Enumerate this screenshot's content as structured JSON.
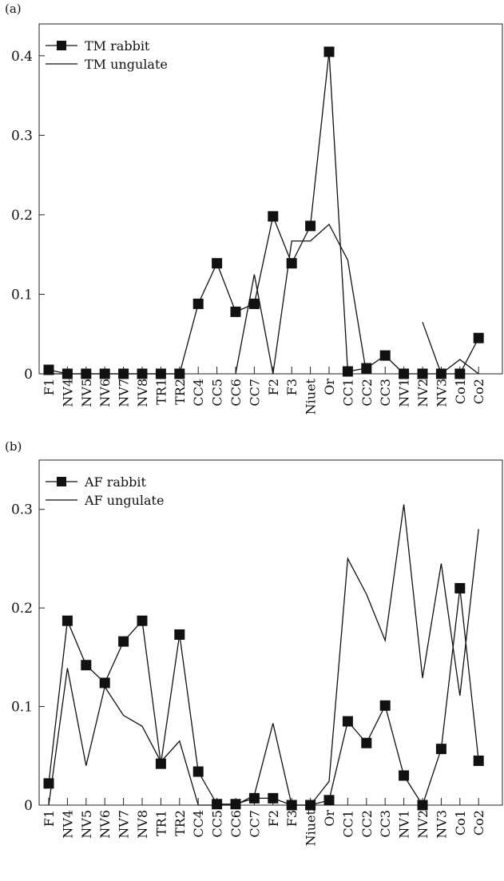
{
  "chart_data": [
    {
      "type": "line",
      "panel_label": "(a)",
      "categories": [
        "F1",
        "NV4",
        "NV5",
        "NV6",
        "NV7",
        "NV8",
        "TR1",
        "TR2",
        "CC4",
        "CC5",
        "CC6",
        "CC7",
        "F2",
        "F3",
        "Niuet",
        "Or",
        "CC1",
        "CC2",
        "CC3",
        "NV1",
        "NV2",
        "NV3",
        "Co1",
        "Co2"
      ],
      "series": [
        {
          "name": "TM rabbit",
          "marker": "square",
          "values": [
            0.005,
            0,
            0,
            0,
            0,
            0,
            0,
            0,
            0.088,
            0.139,
            0.078,
            0.088,
            0.198,
            0.139,
            0.186,
            0.405,
            0.003,
            0.007,
            0.023,
            0,
            0,
            0,
            0,
            0.045
          ]
        },
        {
          "name": "TM ungulate",
          "marker": "none",
          "values": [
            0,
            0,
            0,
            0,
            0,
            0,
            0,
            0,
            null,
            null,
            0,
            0.125,
            0,
            0.167,
            0.167,
            0.188,
            0.143,
            0,
            null,
            null,
            0.065,
            0,
            0.018,
            0
          ]
        }
      ],
      "yticks": [
        "0",
        "0.1",
        "0.2",
        "0.3",
        "0.4"
      ],
      "ylim": [
        0,
        0.44
      ],
      "legend_position": "top-left"
    },
    {
      "type": "line",
      "panel_label": "(b)",
      "categories": [
        "F1",
        "NV4",
        "NV5",
        "NV6",
        "NV7",
        "NV8",
        "TR1",
        "TR2",
        "CC4",
        "CC5",
        "CC6",
        "CC7",
        "F2",
        "F3",
        "Niuet",
        "Or",
        "CC1",
        "CC2",
        "CC3",
        "NV1",
        "NV2",
        "NV3",
        "Co1",
        "Co2"
      ],
      "series": [
        {
          "name": "AF rabbit",
          "marker": "square",
          "values": [
            0.022,
            0.187,
            0.142,
            0.124,
            0.166,
            0.187,
            0.042,
            0.173,
            0.034,
            0.001,
            0.001,
            0.007,
            0.007,
            0,
            0,
            0.005,
            0.085,
            0.063,
            0.101,
            0.03,
            0,
            0.057,
            0.22,
            0.045
          ]
        },
        {
          "name": "AF ungulate",
          "marker": "none",
          "values": [
            0,
            0.139,
            0.04,
            0.12,
            0.091,
            0.08,
            0.044,
            0.065,
            0,
            0,
            0,
            0.01,
            0.083,
            0,
            0,
            0.024,
            0.25,
            0.214,
            0.167,
            0.305,
            0.129,
            0.245,
            0.111,
            0.28
          ]
        }
      ],
      "yticks": [
        "0",
        "0.1",
        "0.2",
        "0.3"
      ],
      "ylim": [
        0,
        0.35
      ],
      "legend_position": "top-left"
    }
  ]
}
